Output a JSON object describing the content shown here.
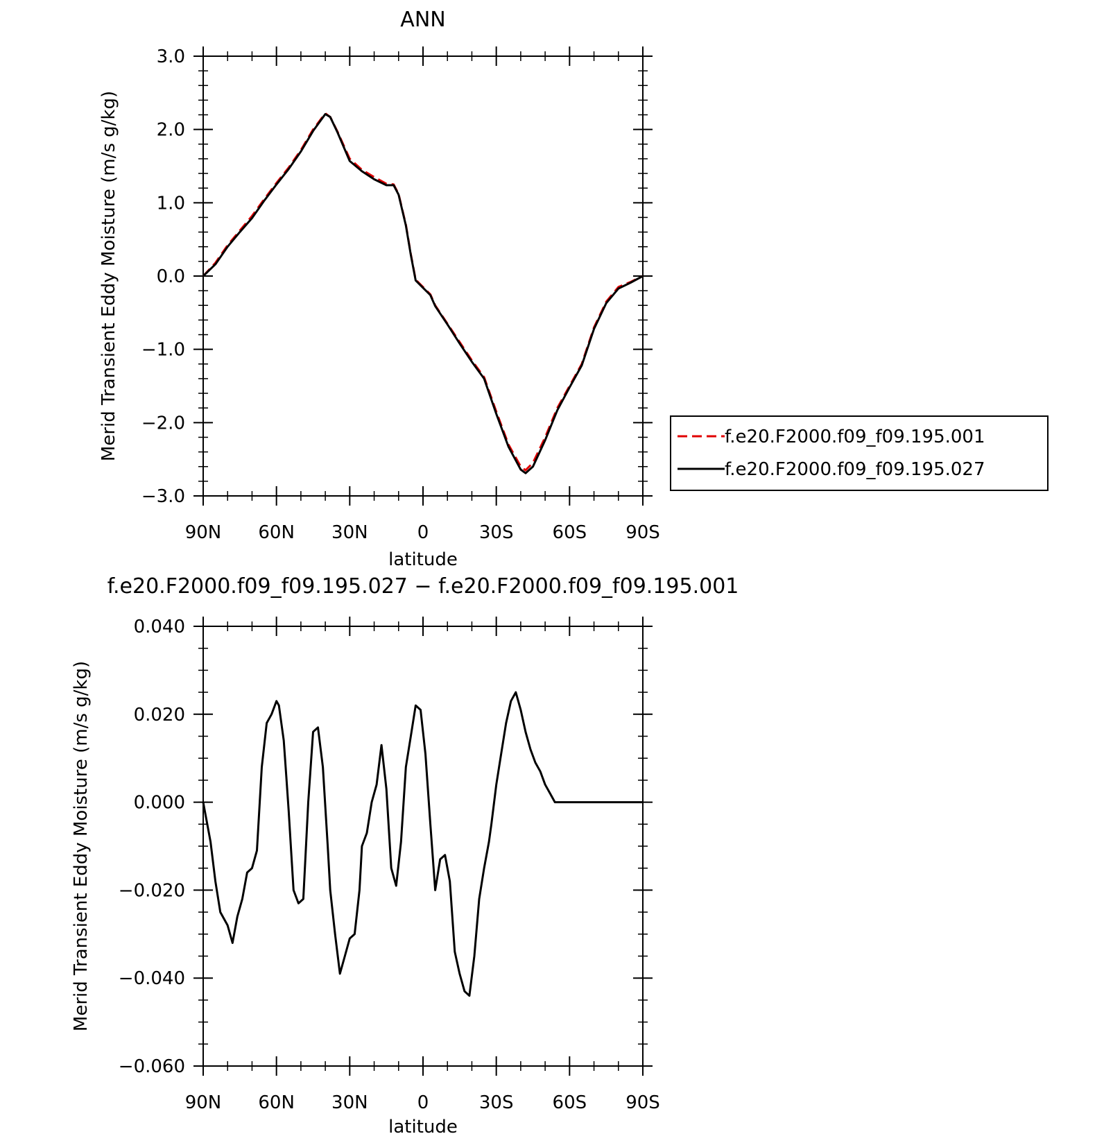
{
  "chart_data": [
    {
      "type": "line",
      "title": "ANN",
      "xlabel": "latitude",
      "ylabel": "Merid Transient Eddy Moisture (m/s g/kg)",
      "x_ticks": [
        {
          "value": 90,
          "label": "90N"
        },
        {
          "value": 60,
          "label": "60N"
        },
        {
          "value": 30,
          "label": "30N"
        },
        {
          "value": 0,
          "label": "0"
        },
        {
          "value": -30,
          "label": "30S"
        },
        {
          "value": -60,
          "label": "60S"
        },
        {
          "value": -90,
          "label": "90S"
        }
      ],
      "xlim": [
        90,
        -90
      ],
      "ylim": [
        -3.0,
        3.0
      ],
      "y_ticks": [
        {
          "value": 3.0,
          "label": "3.0"
        },
        {
          "value": 2.0,
          "label": "2.0"
        },
        {
          "value": 1.0,
          "label": "1.0"
        },
        {
          "value": 0.0,
          "label": "0.0"
        },
        {
          "value": -1.0,
          "label": "−1.0"
        },
        {
          "value": -2.0,
          "label": "−2.0"
        },
        {
          "value": -3.0,
          "label": "−3.0"
        }
      ],
      "y_minor_step": 0.2,
      "x_minor_step": 10,
      "legend": "right",
      "series": [
        {
          "name": "f.e20.F2000.f09_f09.195.001",
          "color": "#e00000",
          "dash": "dashed",
          "x": [
            90,
            85,
            80,
            75,
            70,
            65,
            60,
            55,
            50,
            45,
            40,
            38,
            35,
            30,
            25,
            20,
            15,
            12,
            10,
            7,
            5,
            3,
            0,
            -3,
            -5,
            -10,
            -15,
            -20,
            -25,
            -30,
            -35,
            -40,
            -42,
            -45,
            -50,
            -55,
            -60,
            -65,
            -70,
            -75,
            -80,
            -85,
            -90
          ],
          "y": [
            0.0,
            0.18,
            0.42,
            0.62,
            0.82,
            1.05,
            1.27,
            1.48,
            1.72,
            2.0,
            2.22,
            2.17,
            1.97,
            1.6,
            1.45,
            1.35,
            1.26,
            1.25,
            1.12,
            0.7,
            0.3,
            -0.05,
            -0.15,
            -0.25,
            -0.4,
            -0.65,
            -0.9,
            -1.15,
            -1.38,
            -1.85,
            -2.3,
            -2.6,
            -2.65,
            -2.55,
            -2.2,
            -1.8,
            -1.5,
            -1.2,
            -0.7,
            -0.35,
            -0.15,
            -0.08,
            0.0
          ]
        },
        {
          "name": "f.e20.F2000.f09_f09.195.027",
          "color": "#000000",
          "dash": "solid",
          "x": [
            90,
            85,
            80,
            75,
            70,
            65,
            60,
            55,
            50,
            45,
            40,
            38,
            35,
            30,
            25,
            20,
            15,
            12,
            10,
            7,
            5,
            3,
            0,
            -3,
            -5,
            -10,
            -15,
            -20,
            -25,
            -30,
            -35,
            -40,
            -42,
            -45,
            -50,
            -55,
            -60,
            -65,
            -70,
            -75,
            -80,
            -85,
            -90
          ],
          "y": [
            0.0,
            0.16,
            0.4,
            0.6,
            0.79,
            1.03,
            1.25,
            1.46,
            1.7,
            1.98,
            2.21,
            2.17,
            1.96,
            1.57,
            1.43,
            1.32,
            1.24,
            1.24,
            1.11,
            0.69,
            0.29,
            -0.06,
            -0.16,
            -0.26,
            -0.41,
            -0.66,
            -0.92,
            -1.17,
            -1.4,
            -1.88,
            -2.33,
            -2.64,
            -2.69,
            -2.6,
            -2.24,
            -1.83,
            -1.52,
            -1.22,
            -0.72,
            -0.37,
            -0.17,
            -0.09,
            0.0
          ]
        }
      ]
    },
    {
      "type": "line",
      "title": "f.e20.F2000.f09_f09.195.027 − f.e20.F2000.f09_f09.195.001",
      "xlabel": "latitude",
      "ylabel": "Merid Transient Eddy Moisture (m/s g/kg)",
      "x_ticks": [
        {
          "value": 90,
          "label": "90N"
        },
        {
          "value": 60,
          "label": "60N"
        },
        {
          "value": 30,
          "label": "30N"
        },
        {
          "value": 0,
          "label": "0"
        },
        {
          "value": -30,
          "label": "30S"
        },
        {
          "value": -60,
          "label": "60S"
        },
        {
          "value": -90,
          "label": "90S"
        }
      ],
      "xlim": [
        90,
        -90
      ],
      "ylim": [
        -0.06,
        0.04
      ],
      "y_ticks": [
        {
          "value": 0.04,
          "label": "0.040"
        },
        {
          "value": 0.02,
          "label": "0.020"
        },
        {
          "value": 0.0,
          "label": "0.000"
        },
        {
          "value": -0.02,
          "label": "−0.020"
        },
        {
          "value": -0.04,
          "label": "−0.040"
        },
        {
          "value": -0.06,
          "label": "−0.060"
        }
      ],
      "y_minor_step": 0.005,
      "x_minor_step": 10,
      "series": [
        {
          "color": "#000000",
          "dash": "solid",
          "x": [
            90,
            87,
            85,
            83,
            80,
            78,
            76,
            74,
            72,
            70,
            68,
            66,
            64,
            62,
            60,
            59,
            57,
            56,
            55,
            53,
            51,
            49,
            47,
            45,
            43,
            41,
            39,
            38,
            36,
            34,
            32,
            30,
            28,
            26,
            25,
            23,
            21,
            19,
            17,
            15,
            13,
            11,
            9,
            7,
            5,
            3,
            1,
            -1,
            -3,
            -5,
            -7,
            -9,
            -11,
            -13,
            -15,
            -17,
            -19,
            -21,
            -23,
            -25,
            -27,
            -28,
            -30,
            -32,
            -34,
            -36,
            -38,
            -40,
            -42,
            -44,
            -46,
            -48,
            -50,
            -52,
            -54,
            -56,
            -58,
            -60,
            -62,
            -64,
            -66,
            -68,
            -70,
            -72,
            -74,
            -76,
            -78,
            -80,
            -82,
            -84,
            -86,
            -88,
            -90
          ],
          "y": [
            0.0,
            -0.009,
            -0.018,
            -0.025,
            -0.028,
            -0.032,
            -0.026,
            -0.022,
            -0.016,
            -0.015,
            -0.011,
            0.008,
            0.018,
            0.02,
            0.023,
            0.022,
            0.014,
            0.006,
            -0.002,
            -0.02,
            -0.023,
            -0.022,
            0.0,
            0.016,
            0.017,
            0.008,
            -0.01,
            -0.02,
            -0.03,
            -0.039,
            -0.035,
            -0.031,
            -0.03,
            -0.02,
            -0.01,
            -0.007,
            0.0,
            0.004,
            0.013,
            0.003,
            -0.015,
            -0.019,
            -0.009,
            0.008,
            0.015,
            0.022,
            0.021,
            0.011,
            -0.005,
            -0.02,
            -0.013,
            -0.012,
            -0.018,
            -0.034,
            -0.039,
            -0.043,
            -0.044,
            -0.035,
            -0.022,
            -0.015,
            -0.009,
            -0.005,
            0.004,
            0.011,
            0.018,
            0.023,
            0.025,
            0.021,
            0.016,
            0.012,
            0.009,
            0.007,
            0.004,
            0.002,
            0.0,
            0.0,
            0.0,
            0.0,
            0.0,
            0.0,
            0.0,
            0.0,
            0.0,
            0.0,
            0.0,
            0.0,
            0.0,
            0.0,
            0.0,
            0.0,
            0.0,
            0.0,
            0.0
          ]
        }
      ]
    }
  ]
}
